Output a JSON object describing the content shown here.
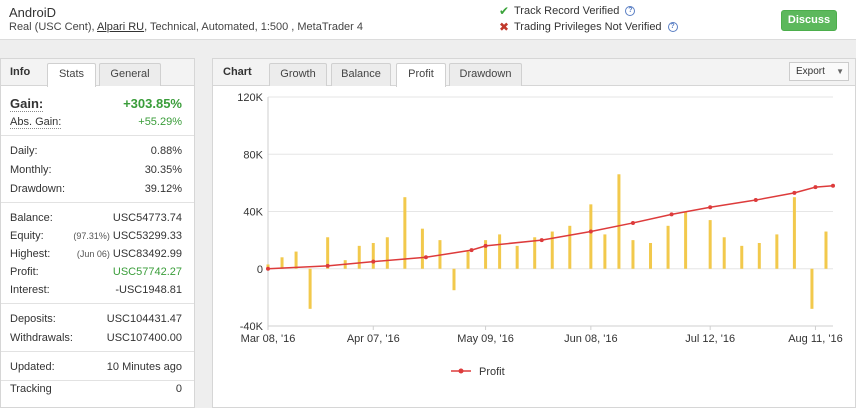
{
  "header": {
    "account_name": "AndroiD",
    "desc_prefix": "Real (USC Cent), ",
    "broker": "Alpari RU",
    "desc_suffix": ", Technical, Automated, 1:500 , MetaTrader 4",
    "track_record": "Track Record Verified",
    "trading_privileges": "Trading Privileges Not Verified",
    "check_icon": "check-icon",
    "cross_icon": "cross-icon",
    "help_icon": "question-icon",
    "discuss_label": "Discuss"
  },
  "info": {
    "title": "Info",
    "tabs": [
      "Stats",
      "General"
    ],
    "active_tab": "Stats",
    "gain_label": "Gain:",
    "gain_value": "+303.85%",
    "abs_gain_label": "Abs. Gain:",
    "abs_gain_value": "+55.29%",
    "daily_label": "Daily:",
    "daily_value": "0.88%",
    "monthly_label": "Monthly:",
    "monthly_value": "30.35%",
    "drawdown_label": "Drawdown:",
    "drawdown_value": "39.12%",
    "balance_label": "Balance:",
    "balance_value": "USC54773.74",
    "equity_label": "Equity:",
    "equity_pct": "(97.31%)",
    "equity_value": "USC53299.33",
    "highest_label": "Highest:",
    "highest_date": "(Jun 06)",
    "highest_value": "USC83492.99",
    "profit_label": "Profit:",
    "profit_value": "USC57742.27",
    "interest_label": "Interest:",
    "interest_value": "-USC1948.81",
    "deposits_label": "Deposits:",
    "deposits_value": "USC104431.47",
    "withdrawals_label": "Withdrawals:",
    "withdrawals_value": "USC107400.00",
    "updated_label": "Updated:",
    "updated_value": "10 Minutes ago",
    "tracking_label": "Tracking",
    "tracking_value": "0"
  },
  "chart_panel": {
    "title": "Chart",
    "tabs": [
      "Growth",
      "Balance",
      "Profit",
      "Drawdown"
    ],
    "active_tab": "Profit",
    "export_label": "Export"
  },
  "chart_data": {
    "type": "line",
    "legend": [
      "Profit"
    ],
    "legend_position": "bottom",
    "ylim": [
      -40000,
      120000
    ],
    "y_ticks": [
      -40000,
      0,
      40000,
      80000,
      120000
    ],
    "y_tick_labels": [
      "-40K",
      "0",
      "40K",
      "80K",
      "120K"
    ],
    "x_tick_labels": [
      "Mar 08, '16",
      "Apr 07, '16",
      "May 09, '16",
      "Jun 08, '16",
      "Jul 12, '16",
      "Aug 11, '16"
    ],
    "x_tick_dates": [
      "2016-03-08",
      "2016-04-07",
      "2016-05-09",
      "2016-06-08",
      "2016-07-12",
      "2016-08-11"
    ],
    "x_range": [
      "2016-03-08",
      "2016-08-16"
    ],
    "grid": "horizontal",
    "colors": {
      "profit_line": "#dd3b3b",
      "daily_bars": "#f2c94c"
    },
    "series": [
      {
        "name": "Profit",
        "x": [
          "2016-03-08",
          "2016-03-25",
          "2016-04-07",
          "2016-04-22",
          "2016-05-05",
          "2016-05-09",
          "2016-05-25",
          "2016-06-08",
          "2016-06-20",
          "2016-07-01",
          "2016-07-12",
          "2016-07-25",
          "2016-08-05",
          "2016-08-11",
          "2016-08-16"
        ],
        "y": [
          0,
          2000,
          5000,
          8000,
          13000,
          16000,
          20000,
          26000,
          32000,
          38000,
          43000,
          48000,
          53000,
          57000,
          58000
        ]
      },
      {
        "type": "bar",
        "x": [
          "2016-03-08",
          "2016-03-12",
          "2016-03-16",
          "2016-03-20",
          "2016-03-25",
          "2016-03-30",
          "2016-04-03",
          "2016-04-07",
          "2016-04-11",
          "2016-04-16",
          "2016-04-21",
          "2016-04-26",
          "2016-04-30",
          "2016-05-04",
          "2016-05-09",
          "2016-05-13",
          "2016-05-18",
          "2016-05-23",
          "2016-05-28",
          "2016-06-02",
          "2016-06-08",
          "2016-06-12",
          "2016-06-16",
          "2016-06-20",
          "2016-06-25",
          "2016-06-30",
          "2016-07-05",
          "2016-07-12",
          "2016-07-16",
          "2016-07-21",
          "2016-07-26",
          "2016-07-31",
          "2016-08-05",
          "2016-08-10",
          "2016-08-14"
        ],
        "y": [
          3000,
          8000,
          12000,
          -28000,
          22000,
          6000,
          16000,
          18000,
          22000,
          50000,
          28000,
          20000,
          -15000,
          12000,
          20000,
          24000,
          16000,
          22000,
          26000,
          30000,
          45000,
          24000,
          66000,
          20000,
          18000,
          30000,
          40000,
          34000,
          22000,
          16000,
          18000,
          24000,
          50000,
          -28000,
          26000
        ]
      }
    ]
  }
}
